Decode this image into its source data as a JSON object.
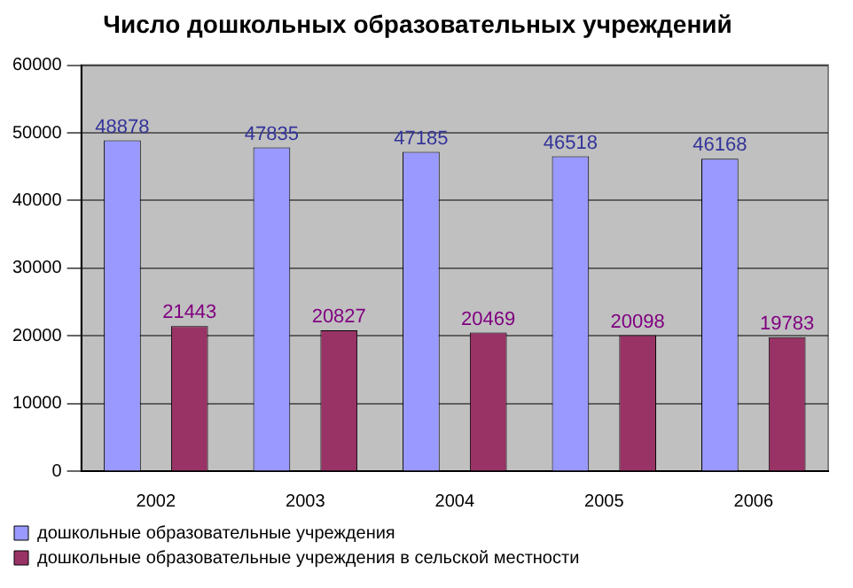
{
  "chart_data": {
    "type": "bar",
    "title": "Число дошкольных образовательных учреждений",
    "categories": [
      "2002",
      "2003",
      "2004",
      "2005",
      "2006"
    ],
    "series": [
      {
        "name": "дошкольные образовательные учреждения",
        "color": "#9999ff",
        "values": [
          48878,
          47835,
          47185,
          46518,
          46168
        ]
      },
      {
        "name": "дошкольные образовательные учреждения в сельской местности",
        "color": "#993366",
        "values": [
          21443,
          20827,
          20469,
          20098,
          19783
        ]
      }
    ],
    "ylim": [
      0,
      60000
    ],
    "yticks": [
      0,
      10000,
      20000,
      30000,
      40000,
      50000,
      60000
    ],
    "grid": "y",
    "legend": "bottom left",
    "data_labels": true
  }
}
